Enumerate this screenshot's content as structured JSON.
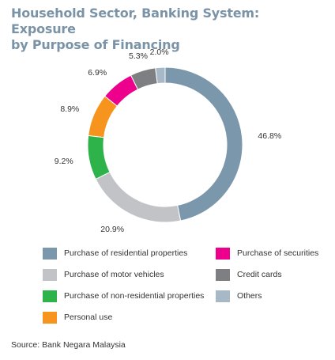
{
  "title_line1": "Household Sector, Banking System: Exposure",
  "title_line2": "by Purpose of Financing",
  "source": "Source: Bank Negara Malaysia",
  "chart_data": {
    "type": "pie",
    "donut": true,
    "start_angle_deg": 0,
    "direction": "clockwise",
    "categories": [
      "Purchase of residential properties",
      "Purchase of motor vehicles",
      "Purchase of non-residential properties",
      "Personal use",
      "Purchase of securities",
      "Credit cards",
      "Others"
    ],
    "values": [
      46.8,
      20.9,
      9.2,
      8.9,
      6.9,
      5.3,
      2.0
    ],
    "labels": [
      "46.8%",
      "20.9%",
      "9.2%",
      "8.9%",
      "6.9%",
      "5.3%",
      "2.0%"
    ],
    "colors": [
      "#7b97ab",
      "#c1c3c7",
      "#2db34a",
      "#f7941d",
      "#ec008c",
      "#7d7f82",
      "#a7b9c7"
    ],
    "legend_placement": "bottom",
    "legend_order": [
      0,
      4,
      1,
      5,
      2,
      6,
      3
    ]
  }
}
